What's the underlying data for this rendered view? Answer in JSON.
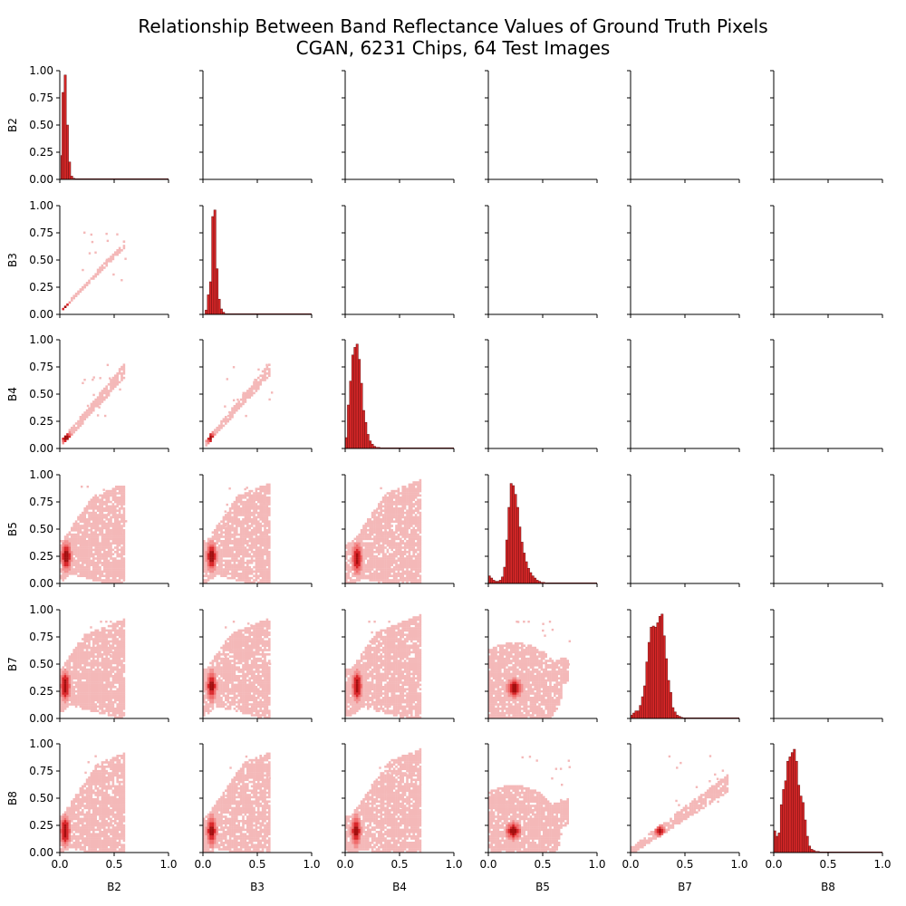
{
  "figure": {
    "title_line1": "Relationship Between Band Reflectance Values of Ground Truth Pixels",
    "title_line2": "CGAN, 6231 Chips, 64 Test Images"
  },
  "chart_data": {
    "type": "pairplot",
    "variables": [
      "B2",
      "B3",
      "B4",
      "B5",
      "B7",
      "B8"
    ],
    "axis_range": [
      0,
      1
    ],
    "x_ticks": [
      0.0,
      0.5,
      1.0
    ],
    "x_tick_labels": [
      "0.0",
      "0.5",
      "1.0"
    ],
    "y_ticks": [
      0.0,
      0.25,
      0.5,
      0.75,
      1.0
    ],
    "y_tick_labels": [
      "0.00",
      "0.25",
      "0.50",
      "0.75",
      "1.00"
    ],
    "diag_type": "histogram",
    "offdiag_type": "2d-histogram",
    "lower_only": true,
    "colors": {
      "hist_fill": "#d62728",
      "hist_edge": "#6b1010",
      "density_light": "#f4b8b8",
      "density_mid": "#ef6b6b",
      "density_dark": "#a30f0f"
    },
    "diagonal": [
      {
        "variable": "B2",
        "bin_width": 0.02,
        "bins": [
          0.02,
          0.03,
          0.05,
          0.07,
          0.09,
          0.11,
          0.13
        ],
        "heights": [
          0.22,
          0.8,
          0.96,
          0.5,
          0.16,
          0.03,
          0.01
        ]
      },
      {
        "variable": "B3",
        "bin_width": 0.02,
        "bins": [
          0.03,
          0.05,
          0.07,
          0.09,
          0.11,
          0.13,
          0.15,
          0.17,
          0.19
        ],
        "heights": [
          0.04,
          0.18,
          0.3,
          0.9,
          0.96,
          0.42,
          0.14,
          0.05,
          0.02
        ]
      },
      {
        "variable": "B4",
        "bin_width": 0.02,
        "bins": [
          0.01,
          0.03,
          0.05,
          0.07,
          0.09,
          0.11,
          0.13,
          0.15,
          0.17,
          0.19,
          0.21,
          0.23,
          0.25,
          0.27,
          0.29,
          0.31
        ],
        "heights": [
          0.1,
          0.4,
          0.62,
          0.86,
          0.93,
          0.96,
          0.82,
          0.6,
          0.35,
          0.24,
          0.13,
          0.07,
          0.04,
          0.02,
          0.01,
          0.01
        ]
      },
      {
        "variable": "B5",
        "bin_width": 0.02,
        "bins": [
          0.01,
          0.03,
          0.05,
          0.07,
          0.09,
          0.11,
          0.13,
          0.15,
          0.17,
          0.19,
          0.21,
          0.23,
          0.25,
          0.27,
          0.29,
          0.31,
          0.33,
          0.35,
          0.37,
          0.39,
          0.41,
          0.43,
          0.45,
          0.47,
          0.49,
          0.51,
          0.53
        ],
        "heights": [
          0.07,
          0.05,
          0.03,
          0.02,
          0.02,
          0.03,
          0.06,
          0.15,
          0.4,
          0.7,
          0.92,
          0.9,
          0.82,
          0.7,
          0.52,
          0.38,
          0.28,
          0.2,
          0.14,
          0.1,
          0.07,
          0.05,
          0.03,
          0.02,
          0.01,
          0.01,
          0.005
        ]
      },
      {
        "variable": "B7",
        "bin_width": 0.02,
        "bins": [
          0.01,
          0.03,
          0.05,
          0.07,
          0.09,
          0.11,
          0.13,
          0.15,
          0.17,
          0.19,
          0.21,
          0.23,
          0.25,
          0.27,
          0.29,
          0.31,
          0.33,
          0.35,
          0.37,
          0.39,
          0.41,
          0.43,
          0.45,
          0.47
        ],
        "heights": [
          0.03,
          0.05,
          0.07,
          0.07,
          0.12,
          0.2,
          0.3,
          0.52,
          0.7,
          0.84,
          0.85,
          0.84,
          0.88,
          0.94,
          0.96,
          0.76,
          0.55,
          0.35,
          0.24,
          0.1,
          0.06,
          0.03,
          0.02,
          0.01
        ]
      },
      {
        "variable": "B8",
        "bin_width": 0.02,
        "bins": [
          0.01,
          0.03,
          0.05,
          0.07,
          0.09,
          0.11,
          0.13,
          0.15,
          0.17,
          0.19,
          0.21,
          0.23,
          0.25,
          0.27,
          0.29,
          0.31,
          0.33,
          0.35,
          0.37,
          0.39,
          0.41
        ],
        "heights": [
          0.2,
          0.15,
          0.18,
          0.44,
          0.58,
          0.66,
          0.84,
          0.88,
          0.92,
          0.95,
          0.84,
          0.62,
          0.52,
          0.46,
          0.3,
          0.15,
          0.06,
          0.03,
          0.02,
          0.01,
          0.01
        ]
      }
    ],
    "pairs": [
      {
        "x": "B2",
        "y": "B3",
        "shape": "linear",
        "slope": 1.05,
        "extent": [
          0.02,
          0.6
        ],
        "peak": [
          0.05,
          0.07
        ],
        "spread": 0.025
      },
      {
        "x": "B2",
        "y": "B4",
        "shape": "linear",
        "slope": 1.15,
        "extent": [
          0.02,
          0.6
        ],
        "peak": [
          0.06,
          0.1
        ],
        "spread": 0.05
      },
      {
        "x": "B3",
        "y": "B4",
        "shape": "linear",
        "slope": 1.15,
        "extent": [
          0.03,
          0.63
        ],
        "peak": [
          0.07,
          0.1
        ],
        "spread": 0.045
      },
      {
        "x": "B2",
        "y": "B5",
        "shape": "fan",
        "peak": [
          0.06,
          0.25
        ],
        "extent": [
          0.0,
          0.6
        ],
        "spread": 0.18
      },
      {
        "x": "B3",
        "y": "B5",
        "shape": "fan",
        "peak": [
          0.08,
          0.25
        ],
        "extent": [
          0.0,
          0.62
        ],
        "spread": 0.18
      },
      {
        "x": "B4",
        "y": "B5",
        "shape": "fan",
        "peak": [
          0.11,
          0.23
        ],
        "extent": [
          0.0,
          0.7
        ],
        "spread": 0.18
      },
      {
        "x": "B2",
        "y": "B7",
        "shape": "fan",
        "peak": [
          0.05,
          0.3
        ],
        "extent": [
          0.0,
          0.6
        ],
        "spread": 0.2
      },
      {
        "x": "B3",
        "y": "B7",
        "shape": "fan",
        "peak": [
          0.08,
          0.3
        ],
        "extent": [
          0.0,
          0.63
        ],
        "spread": 0.2
      },
      {
        "x": "B4",
        "y": "B7",
        "shape": "fan",
        "peak": [
          0.11,
          0.3
        ],
        "extent": [
          0.0,
          0.7
        ],
        "spread": 0.2
      },
      {
        "x": "B5",
        "y": "B7",
        "shape": "blob",
        "peak": [
          0.24,
          0.28
        ],
        "extent": [
          0.0,
          0.75
        ],
        "spread": 0.17
      },
      {
        "x": "B2",
        "y": "B8",
        "shape": "fan",
        "peak": [
          0.05,
          0.2
        ],
        "extent": [
          0.0,
          0.6
        ],
        "spread": 0.17
      },
      {
        "x": "B3",
        "y": "B8",
        "shape": "fan",
        "peak": [
          0.08,
          0.2
        ],
        "extent": [
          0.0,
          0.63
        ],
        "spread": 0.17
      },
      {
        "x": "B4",
        "y": "B8",
        "shape": "fan",
        "peak": [
          0.1,
          0.2
        ],
        "extent": [
          0.0,
          0.7
        ],
        "spread": 0.17
      },
      {
        "x": "B5",
        "y": "B8",
        "shape": "blob",
        "peak": [
          0.23,
          0.2
        ],
        "extent": [
          0.0,
          0.75
        ],
        "spread": 0.15
      },
      {
        "x": "B7",
        "y": "B8",
        "shape": "linear",
        "slope": 0.7,
        "extent": [
          0.0,
          0.9
        ],
        "peak": [
          0.27,
          0.2
        ],
        "spread": 0.06
      }
    ]
  }
}
